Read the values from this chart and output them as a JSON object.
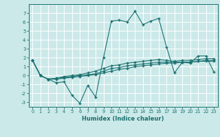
{
  "xlabel": "Humidex (Indice chaleur)",
  "xlim": [
    -0.5,
    23.5
  ],
  "ylim": [
    -3.5,
    8.0
  ],
  "yticks": [
    -3,
    -2,
    -1,
    0,
    1,
    2,
    3,
    4,
    5,
    6,
    7
  ],
  "xticks": [
    0,
    1,
    2,
    3,
    4,
    5,
    6,
    7,
    8,
    9,
    10,
    11,
    12,
    13,
    14,
    15,
    16,
    17,
    18,
    19,
    20,
    21,
    22,
    23
  ],
  "bg_color": "#cce9e9",
  "grid_color": "#ffffff",
  "line_color": "#1a7070",
  "series": [
    [
      1.7,
      0.0,
      -0.4,
      -0.8,
      -0.7,
      -2.2,
      -3.1,
      -1.1,
      -2.4,
      2.0,
      6.1,
      6.2,
      6.0,
      7.2,
      5.7,
      6.1,
      6.4,
      3.2,
      0.3,
      1.5,
      1.4,
      2.2,
      2.2,
      0.4
    ],
    [
      1.7,
      0.0,
      -0.4,
      -0.4,
      -0.3,
      -0.2,
      -0.1,
      0.0,
      0.1,
      0.3,
      0.5,
      0.7,
      0.8,
      1.0,
      1.1,
      1.2,
      1.3,
      1.4,
      1.4,
      1.5,
      1.5,
      1.6,
      1.6,
      1.6
    ],
    [
      1.7,
      0.0,
      -0.4,
      -0.3,
      -0.2,
      -0.1,
      0.0,
      0.1,
      0.2,
      0.5,
      0.8,
      0.9,
      1.1,
      1.2,
      1.3,
      1.4,
      1.5,
      1.5,
      1.5,
      1.5,
      1.5,
      1.6,
      1.7,
      1.7
    ],
    [
      1.7,
      0.0,
      -0.4,
      -0.3,
      -0.1,
      0.0,
      0.1,
      0.3,
      0.5,
      0.8,
      1.1,
      1.2,
      1.4,
      1.5,
      1.6,
      1.7,
      1.8,
      1.7,
      1.6,
      1.7,
      1.7,
      1.8,
      1.9,
      1.9
    ]
  ]
}
